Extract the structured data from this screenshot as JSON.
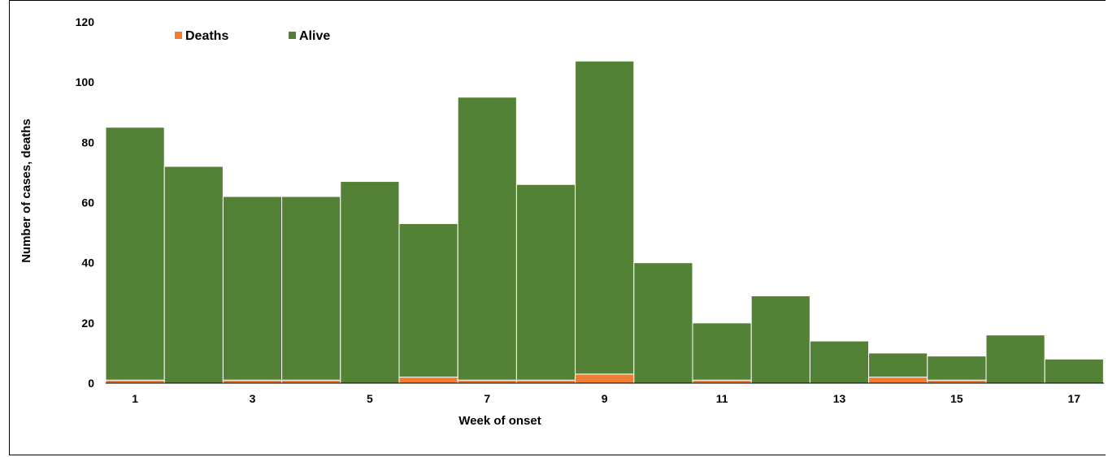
{
  "chart_data": {
    "type": "bar",
    "stacked": true,
    "xlabel": "Week of onset",
    "ylabel": "Number of cases, deaths",
    "ylim": [
      0,
      120
    ],
    "yticks": [
      0,
      20,
      40,
      60,
      80,
      100,
      120
    ],
    "categories": [
      1,
      2,
      3,
      4,
      5,
      6,
      7,
      8,
      9,
      10,
      11,
      12,
      13,
      14,
      15,
      16,
      17
    ],
    "xtick_labels": [
      "1",
      "3",
      "5",
      "7",
      "9",
      "11",
      "13",
      "15",
      "17"
    ],
    "legend_position": "top-left",
    "series": [
      {
        "name": "Deaths",
        "color": "#ED7D31",
        "values": [
          1,
          0,
          1,
          1,
          0,
          2,
          1,
          1,
          3,
          0,
          1,
          0,
          0,
          2,
          1,
          0,
          0
        ]
      },
      {
        "name": "Alive",
        "color": "#538135",
        "values": [
          84,
          72,
          61,
          61,
          67,
          51,
          94,
          65,
          104,
          40,
          19,
          29,
          14,
          8,
          8,
          16,
          8
        ]
      }
    ],
    "grid": false
  }
}
